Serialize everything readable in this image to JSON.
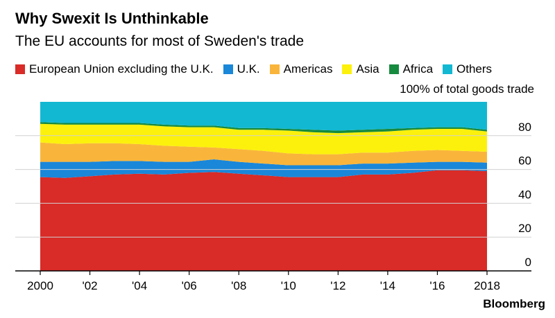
{
  "chart_data": {
    "type": "area",
    "stacked": true,
    "title": "Why Swexit Is Unthinkable",
    "subtitle": "The EU accounts for most of Sweden's trade",
    "unit_label": "100% of total goods trade",
    "x": [
      2000,
      2001,
      2002,
      2003,
      2004,
      2005,
      2006,
      2007,
      2008,
      2009,
      2010,
      2011,
      2012,
      2013,
      2014,
      2015,
      2016,
      2017,
      2018
    ],
    "x_tick_values": [
      2000,
      2002,
      2004,
      2006,
      2008,
      2010,
      2012,
      2014,
      2016,
      2018
    ],
    "x_tick_labels": [
      "2000",
      "'02",
      "'04",
      "'06",
      "'08",
      "'10",
      "'12",
      "'14",
      "'16",
      "2018"
    ],
    "y_ticks": [
      0,
      20,
      40,
      60,
      80
    ],
    "ylim": [
      0,
      100
    ],
    "series": [
      {
        "name": "European Union excluding the U.K.",
        "color": "#d92b27",
        "values": [
          55.5,
          55.0,
          56.0,
          57.0,
          57.5,
          57.0,
          58.0,
          58.5,
          57.5,
          56.5,
          55.5,
          55.5,
          55.5,
          57.0,
          57.0,
          58.0,
          59.5,
          59.5,
          59.0
        ]
      },
      {
        "name": "U.K.",
        "color": "#1a87d9",
        "values": [
          9.0,
          9.5,
          8.5,
          8.0,
          7.5,
          7.5,
          6.5,
          7.5,
          7.0,
          7.0,
          7.0,
          7.0,
          7.0,
          6.5,
          6.5,
          6.0,
          5.0,
          5.0,
          5.0
        ]
      },
      {
        "name": "Americas",
        "color": "#f9b53b",
        "values": [
          11.5,
          10.5,
          11.0,
          10.5,
          10.0,
          9.5,
          9.0,
          7.0,
          7.5,
          7.5,
          7.0,
          6.5,
          6.5,
          6.5,
          6.5,
          7.0,
          7.0,
          6.5,
          6.5
        ]
      },
      {
        "name": "Asia",
        "color": "#fcf10c",
        "values": [
          11.0,
          11.5,
          11.0,
          11.0,
          11.5,
          11.5,
          11.5,
          12.0,
          11.5,
          12.5,
          13.5,
          13.0,
          12.5,
          12.0,
          12.5,
          12.5,
          12.5,
          13.0,
          12.0
        ]
      },
      {
        "name": "Africa",
        "color": "#168a3e",
        "values": [
          1.0,
          1.0,
          1.0,
          1.0,
          1.0,
          1.0,
          1.0,
          1.0,
          1.0,
          1.0,
          1.0,
          1.5,
          1.5,
          1.5,
          1.5,
          1.0,
          1.0,
          1.0,
          1.0
        ]
      },
      {
        "name": "Others",
        "color": "#12b8d2",
        "values": [
          12.0,
          12.5,
          12.5,
          12.5,
          12.5,
          13.5,
          14.0,
          14.0,
          15.5,
          15.5,
          16.0,
          16.5,
          17.0,
          16.5,
          16.0,
          15.5,
          15.0,
          15.0,
          16.5
        ]
      }
    ],
    "grid": true,
    "legend_position": "top",
    "y_axis_position": "right"
  },
  "source": "Bloomberg"
}
